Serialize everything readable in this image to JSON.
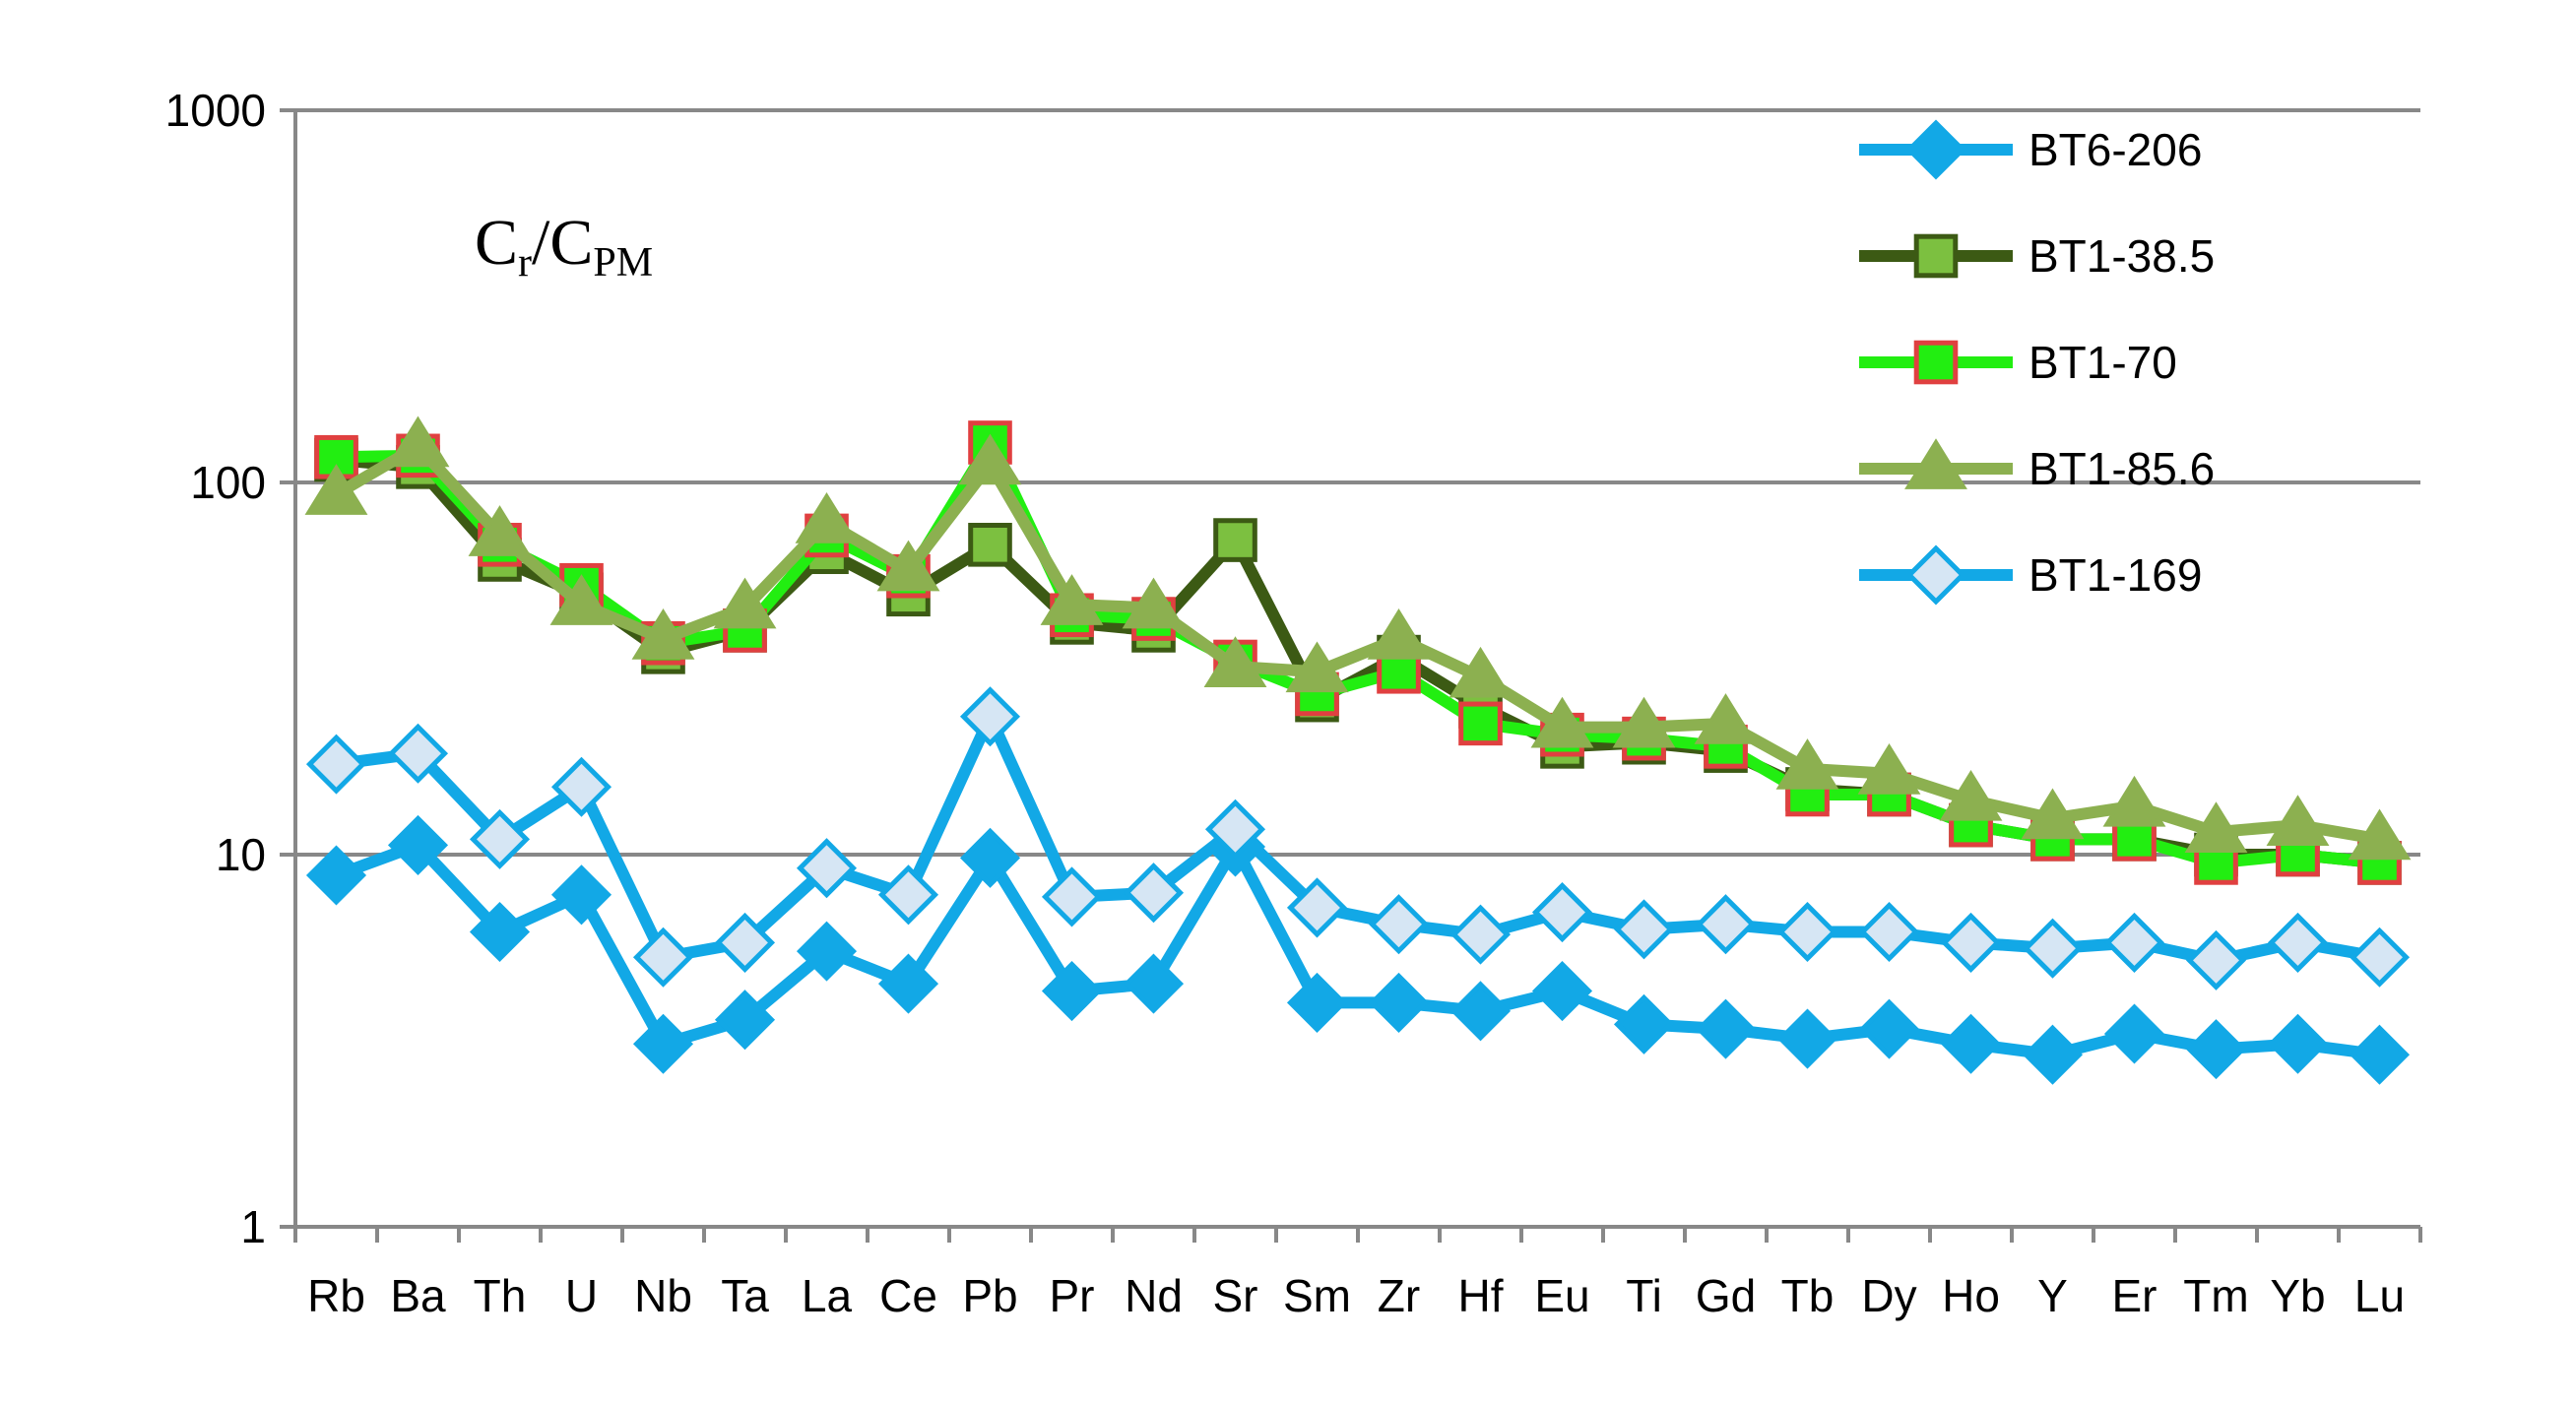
{
  "chart_data": {
    "type": "line",
    "yscale": "log",
    "ylim": [
      1,
      1000
    ],
    "yticks": [
      1,
      10,
      100,
      1000
    ],
    "ytick_labels": [
      "1",
      "10",
      "100",
      "1000"
    ],
    "gridlines": "horizontal",
    "categories": [
      "Rb",
      "Ba",
      "Th",
      "U",
      "Nb",
      "Ta",
      "La",
      "Ce",
      "Pb",
      "Pr",
      "Nd",
      "Sr",
      "Sm",
      "Zr",
      "Hf",
      "Eu",
      "Ti",
      "Gd",
      "Tb",
      "Dy",
      "Ho",
      "Y",
      "Er",
      "Tm",
      "Yb",
      "Lu"
    ],
    "annotation": {
      "main": "C",
      "sub1": "r",
      "slash": "/C",
      "sub2": "PM"
    },
    "legend_position": "top-right",
    "series": [
      {
        "name": "BT6-206",
        "line_color": "#12A8E6",
        "marker": "diamond",
        "marker_fill": "#12A8E6",
        "marker_stroke": "#12A8E6",
        "values": [
          8.8,
          10.6,
          6.2,
          7.8,
          3.1,
          3.6,
          5.5,
          4.5,
          9.8,
          4.3,
          4.5,
          10.5,
          4.0,
          4.0,
          3.8,
          4.3,
          3.5,
          3.4,
          3.2,
          3.4,
          3.1,
          2.9,
          3.3,
          3.0,
          3.1,
          2.9
        ]
      },
      {
        "name": "BT1-38.5",
        "line_color": "#3C5A14",
        "marker": "square",
        "marker_fill": "#7CC040",
        "marker_stroke": "#3C5A14",
        "values": [
          115,
          110,
          62,
          50,
          35,
          40,
          65,
          50,
          68,
          42,
          40,
          70,
          26,
          34,
          25,
          19.5,
          20,
          19,
          15,
          14.5,
          12,
          11,
          11,
          10,
          10,
          9.5
        ]
      },
      {
        "name": "BT1-70",
        "line_color": "#22EE11",
        "marker": "square",
        "marker_fill": "#22EE11",
        "marker_stroke": "#E04040",
        "values": [
          117,
          118,
          68,
          53,
          37,
          40,
          72,
          56,
          128,
          44,
          43,
          33,
          27,
          31,
          22.5,
          21,
          20.5,
          19.5,
          14.5,
          14.5,
          12,
          11,
          11,
          9.5,
          10,
          9.5
        ]
      },
      {
        "name": "BT1-85.6",
        "line_color": "#8CB050",
        "marker": "triangle",
        "marker_fill": "#8CB050",
        "marker_stroke": "#8CB050",
        "values": [
          93,
          125,
          72,
          47,
          38,
          46,
          78,
          58,
          112,
          47,
          46,
          32,
          31,
          38,
          30,
          22,
          22,
          22.5,
          17,
          16.5,
          14,
          12.5,
          13.5,
          11.5,
          12,
          11
        ]
      },
      {
        "name": "BT1-169",
        "line_color": "#12A8E6",
        "marker": "diamond",
        "marker_fill": "#D6E6F4",
        "marker_stroke": "#12A8E6",
        "values": [
          17.5,
          18.7,
          11.0,
          15.2,
          5.3,
          5.8,
          9.2,
          7.8,
          23.5,
          7.7,
          7.9,
          11.7,
          7.2,
          6.5,
          6.1,
          7.0,
          6.3,
          6.5,
          6.2,
          6.2,
          5.8,
          5.6,
          5.8,
          5.2,
          5.8,
          5.3
        ]
      }
    ]
  }
}
